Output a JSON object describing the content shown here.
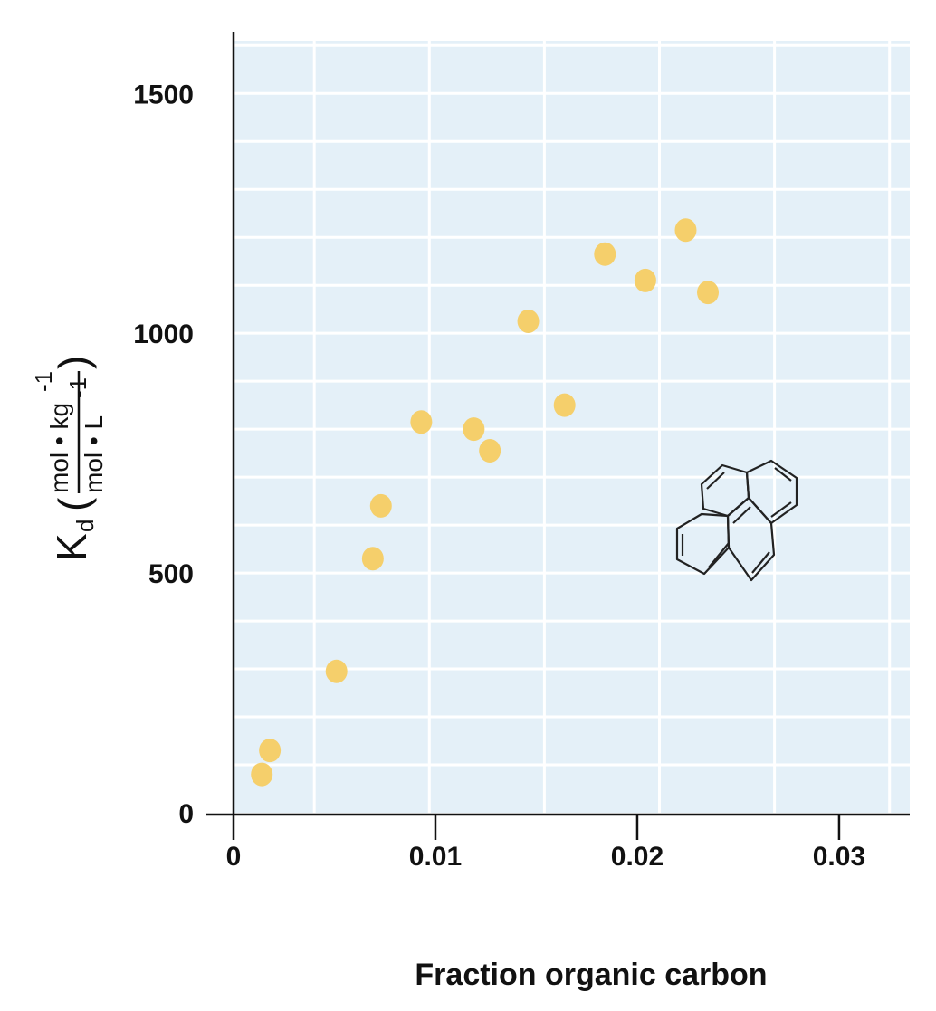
{
  "chart_data": {
    "type": "scatter",
    "title": "",
    "xlabel": "Fraction organic carbon",
    "ylabel": {
      "symbol": "K",
      "subscript": "d",
      "numerator": "mol • kg",
      "numerator_exp": "-1",
      "denominator": "mol • L",
      "denominator_exp": "-1"
    },
    "xlim": [
      0,
      0.0335
    ],
    "ylim": [
      0,
      1610
    ],
    "xticks": [
      0,
      0.01,
      0.02,
      0.03
    ],
    "xtick_labels": [
      "0",
      "0.01",
      "0.02",
      "0.03"
    ],
    "yticks": [
      0,
      500,
      1000,
      1500
    ],
    "ytick_labels": [
      "0",
      "500",
      "1000",
      "1500"
    ],
    "grid": true,
    "legend": "none",
    "colors": {
      "plot_background": "#e4f0f8",
      "grid": "#ffffff",
      "points": "#f5cf6b",
      "axis": "#111111"
    },
    "points": [
      {
        "x": 0.0014,
        "y": 80
      },
      {
        "x": 0.0018,
        "y": 130
      },
      {
        "x": 0.0051,
        "y": 295
      },
      {
        "x": 0.0069,
        "y": 530
      },
      {
        "x": 0.0073,
        "y": 640
      },
      {
        "x": 0.0093,
        "y": 815
      },
      {
        "x": 0.0119,
        "y": 800
      },
      {
        "x": 0.0127,
        "y": 755
      },
      {
        "x": 0.0146,
        "y": 1025
      },
      {
        "x": 0.0164,
        "y": 850
      },
      {
        "x": 0.0184,
        "y": 1165
      },
      {
        "x": 0.0204,
        "y": 1110
      },
      {
        "x": 0.0224,
        "y": 1215
      },
      {
        "x": 0.0235,
        "y": 1085
      }
    ]
  },
  "inset": {
    "icon": "pyrene-structure-icon"
  }
}
